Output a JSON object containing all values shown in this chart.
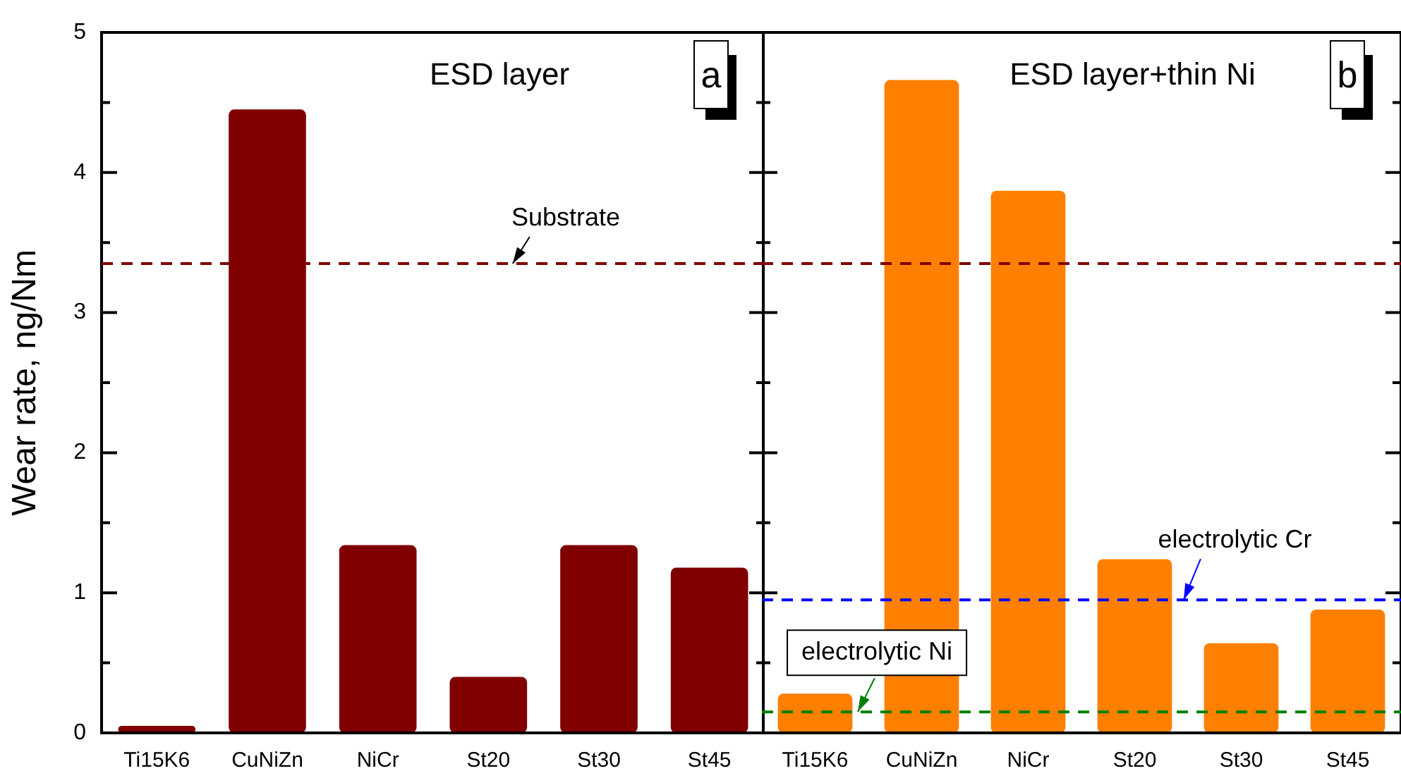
{
  "chart_data": [
    {
      "type": "bar",
      "title": "ESD layer",
      "ylabel": "Wear rate, ng/Nm",
      "annotations": [
        "a"
      ],
      "categories": [
        "Ti15K6",
        "CuNiZn",
        "NiCr",
        "St20",
        "St30",
        "St45"
      ],
      "values": [
        0.05,
        4.45,
        1.34,
        0.4,
        1.34,
        1.18
      ],
      "color": "#800000",
      "ylim": [
        0,
        5
      ],
      "yticks": [
        0,
        {
          "value": 0.5,
          "label": null
        },
        1,
        {
          "value": 1.5,
          "label": null
        },
        2,
        {
          "value": 2.5,
          "label": null
        },
        3,
        {
          "value": 3.5,
          "label": null
        },
        4,
        {
          "value": 4.5,
          "label": null
        },
        5
      ],
      "ref_lines": [
        {
          "axis": "y",
          "value": 3.35,
          "label": "Substrate",
          "color": "#800000",
          "line_style": "dashed"
        }
      ],
      "grid": false,
      "legend": false
    },
    {
      "type": "bar",
      "title": "ESD layer+thin Ni",
      "annotations": [
        "b"
      ],
      "categories": [
        "Ti15K6",
        "CuNiZn",
        "NiCr",
        "St20",
        "St30",
        "St45"
      ],
      "values": [
        0.28,
        4.66,
        3.87,
        1.24,
        0.64,
        0.88
      ],
      "color": "#ff8000",
      "ylim": [
        0,
        5
      ],
      "yticks": [
        0,
        {
          "value": 0.5,
          "label": null
        },
        1,
        {
          "value": 1.5,
          "label": null
        },
        2,
        {
          "value": 2.5,
          "label": null
        },
        3,
        {
          "value": 3.5,
          "label": null
        },
        4,
        {
          "value": 4.5,
          "label": null
        },
        5
      ],
      "ref_lines": [
        {
          "axis": "y",
          "value": 3.35,
          "color": "#800000",
          "line_style": "dashed"
        },
        {
          "axis": "y",
          "value": 0.95,
          "label": "electrolytic Cr",
          "color": "#0000ff",
          "line_style": "dashed"
        },
        {
          "axis": "y",
          "value": 0.15,
          "label": "electrolytic Ni",
          "color": "#008000",
          "line_style": "dashed"
        }
      ],
      "grid": false,
      "legend": false,
      "tick_labels": "x"
    }
  ]
}
